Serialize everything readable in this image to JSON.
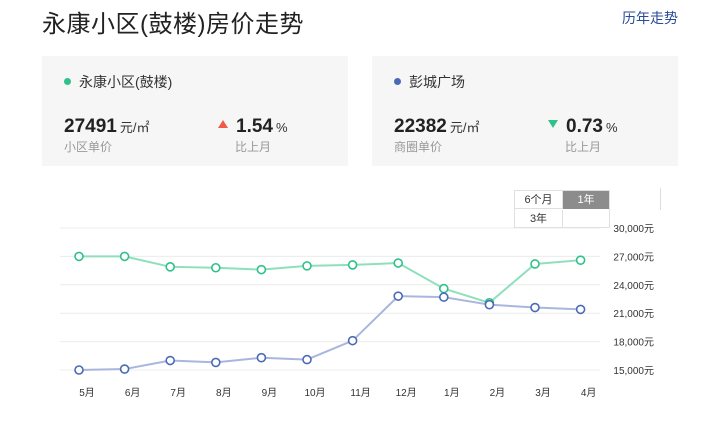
{
  "header": {
    "title": "永康小区(鼓楼)房价走势",
    "history_link": "历年走势"
  },
  "cards": [
    {
      "name": "永康小区(鼓楼)",
      "dot_color": "#2ec18a",
      "price": "27491",
      "price_unit": "元/㎡",
      "price_label": "小区单价",
      "change": "1.54",
      "change_unit": "%",
      "change_dir": "up",
      "change_label": "比上月"
    },
    {
      "name": "彭城广场",
      "dot_color": "#4a6ab8",
      "price": "22382",
      "price_unit": "元/㎡",
      "price_label": "商圈单价",
      "change": "0.73",
      "change_unit": "%",
      "change_dir": "down",
      "change_label": "比上月"
    }
  ],
  "range_selector": {
    "options": [
      "6个月",
      "1年",
      "3年"
    ],
    "selected": "1年"
  },
  "chart_data": {
    "type": "line",
    "x": [
      "5月",
      "6月",
      "7月",
      "8月",
      "9月",
      "10月",
      "11月",
      "12月",
      "1月",
      "2月",
      "3月",
      "4月"
    ],
    "y_ticks": [
      "30,000元",
      "27,000元",
      "24,000元",
      "21,000元",
      "18,000元",
      "15,000元"
    ],
    "ylim": [
      15000,
      30000
    ],
    "series": [
      {
        "name": "永康小区(鼓楼)",
        "color": "#8ee0bc",
        "marker_color": "#2ec18a",
        "values": [
          27000,
          27000,
          25900,
          25800,
          25600,
          26000,
          26100,
          26300,
          23600,
          22100,
          26200,
          26600
        ]
      },
      {
        "name": "彭城广场",
        "color": "#a9b6dd",
        "marker_color": "#4a6ab8",
        "values": [
          15000,
          15100,
          16000,
          15800,
          16300,
          16100,
          18100,
          22800,
          22700,
          21900,
          21600,
          21400
        ]
      }
    ]
  }
}
